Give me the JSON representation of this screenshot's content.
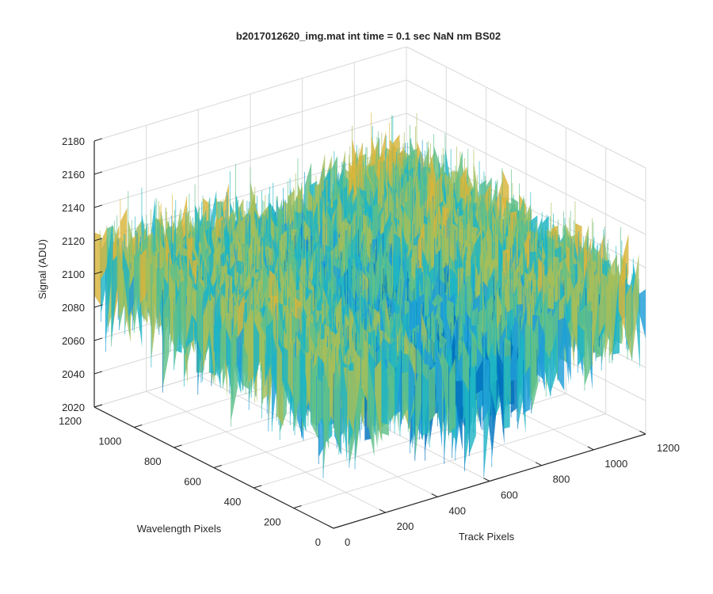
{
  "chart_data": {
    "type": "surface",
    "title": "b2017012620_img.mat int time = 0.1 sec  NaN nm BS02",
    "xlabel": "Track Pixels",
    "ylabel": "Wavelength Pixels",
    "zlabel": "Signal (ADU)",
    "xlim": [
      0,
      1200
    ],
    "ylim": [
      0,
      1200
    ],
    "zlim": [
      2020,
      2180
    ],
    "xticks": [
      "0",
      "200",
      "400",
      "600",
      "800",
      "1000",
      "1200"
    ],
    "yticks": [
      "0",
      "200",
      "400",
      "600",
      "800",
      "1000",
      "1200"
    ],
    "zticks": [
      "2020",
      "2040",
      "2060",
      "2080",
      "2100",
      "2120",
      "2140",
      "2160",
      "2180"
    ],
    "grid": true,
    "colormap": "parula",
    "colors": [
      "#0072BD",
      "#1F9ED8",
      "#1FB5C4",
      "#5FC08A",
      "#A5BE5A",
      "#D8B53A",
      "#F0C830"
    ],
    "surface_shape": "noisy plateau around 2110 ADU with a lower trough (~2085) across the middle track region",
    "approx_values": [
      {
        "track": 0,
        "wavelength": 1200,
        "signal": 2112
      },
      {
        "track": 600,
        "wavelength": 1200,
        "signal": 2105
      },
      {
        "track": 1200,
        "wavelength": 1200,
        "signal": 2120
      },
      {
        "track": 0,
        "wavelength": 600,
        "signal": 2108
      },
      {
        "track": 600,
        "wavelength": 600,
        "signal": 2088
      },
      {
        "track": 1200,
        "wavelength": 600,
        "signal": 2100
      },
      {
        "track": 0,
        "wavelength": 0,
        "signal": 2098
      },
      {
        "track": 600,
        "wavelength": 0,
        "signal": 2082
      },
      {
        "track": 1200,
        "wavelength": 0,
        "signal": 2092
      }
    ]
  }
}
